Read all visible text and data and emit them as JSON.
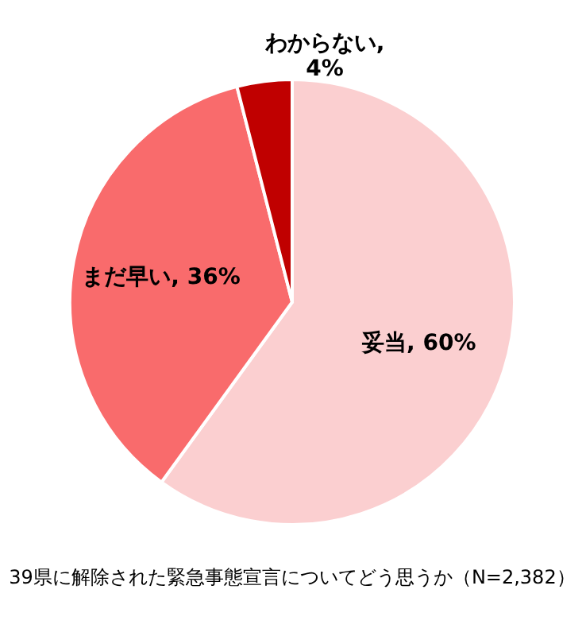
{
  "chart_data": {
    "type": "pie",
    "title": "39県に解除された緊急事態宣言についてどう思うか（N=2,382）",
    "categories": [
      "妥当",
      "まだ早い",
      "わからない"
    ],
    "values": [
      60,
      36,
      4
    ],
    "colors": [
      "#fbcfd0",
      "#f96b6c",
      "#c00000"
    ],
    "value_labels": [
      ", 60%",
      ", 36%",
      ",\n4%"
    ],
    "legend": false
  }
}
